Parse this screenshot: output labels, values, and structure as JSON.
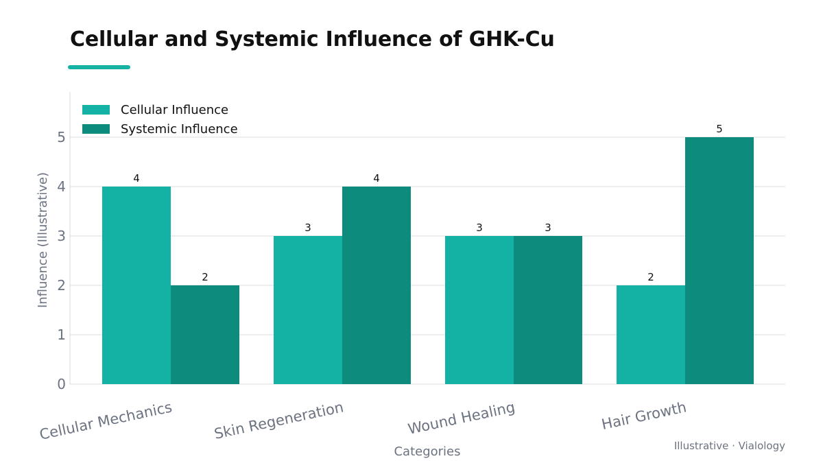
{
  "page": {
    "title": "Cellular and Systemic Influence of GHK-Cu",
    "footer": "Illustrative · Vialology"
  },
  "colors": {
    "accent": "#14b2a4",
    "cellular": "#14b2a4",
    "systemic": "#0d8b7d",
    "grid": "#e5e7eb",
    "axis_text": "#6b7280"
  },
  "chart_data": {
    "type": "bar",
    "title": "Cellular and Systemic Influence of GHK-Cu",
    "xlabel": "Categories",
    "ylabel": "Influence (Illustrative)",
    "categories": [
      "Cellular Mechanics",
      "Skin Regeneration",
      "Wound Healing",
      "Hair Growth"
    ],
    "series": [
      {
        "name": "Cellular Influence",
        "values": [
          4,
          3,
          3,
          2
        ]
      },
      {
        "name": "Systemic Influence",
        "values": [
          2,
          4,
          3,
          5
        ]
      }
    ],
    "ylim": [
      0,
      5
    ],
    "yticks": [
      0,
      1,
      2,
      3,
      4,
      5
    ],
    "grid": true,
    "legend_position": "top-left"
  }
}
